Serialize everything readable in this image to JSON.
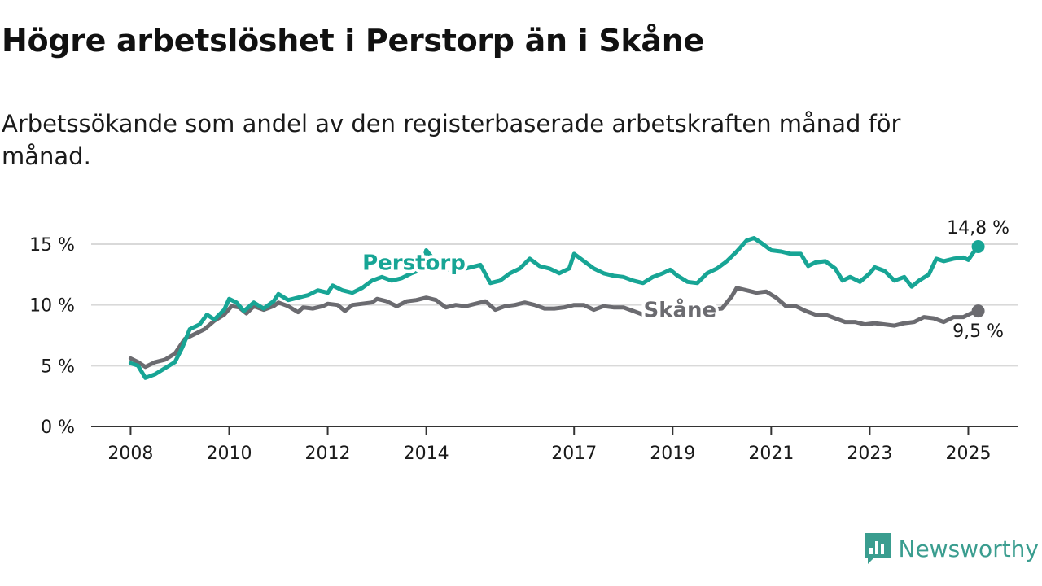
{
  "title": "Högre arbetslöshet i Perstorp än i Skåne",
  "subtitle": "Arbetssökande som andel av den registerbaserade arbetskraften månad för månad.",
  "brand": {
    "name": "Newsworthy",
    "icon": "newsworthy-logo-icon",
    "color": "#3a9d8f"
  },
  "chart_data": {
    "type": "line",
    "x_ticks": [
      {
        "label": "2008",
        "value": 2008.0
      },
      {
        "label": "2010",
        "value": 2010.0
      },
      {
        "label": "2012",
        "value": 2012.0
      },
      {
        "label": "2014",
        "value": 2014.0
      },
      {
        "label": "2017",
        "value": 2017.0
      },
      {
        "label": "2019",
        "value": 2019.0
      },
      {
        "label": "2021",
        "value": 2021.0
      },
      {
        "label": "2023",
        "value": 2023.0
      },
      {
        "label": "2025",
        "value": 2025.0
      }
    ],
    "xlim": [
      2007.2,
      2026.0
    ],
    "y_ticks": [
      {
        "label": "0 %",
        "value": 0
      },
      {
        "label": "5 %",
        "value": 5
      },
      {
        "label": "10 %",
        "value": 10
      },
      {
        "label": "15 %",
        "value": 15
      }
    ],
    "ylim": [
      0,
      15
    ],
    "grid": true,
    "series": [
      {
        "name": "Perstorp",
        "color": "#17a595",
        "end_label": "14,8 %",
        "points": [
          [
            2008.0,
            5.2
          ],
          [
            2008.15,
            5.0
          ],
          [
            2008.3,
            4.0
          ],
          [
            2008.5,
            4.3
          ],
          [
            2008.7,
            4.8
          ],
          [
            2008.9,
            5.3
          ],
          [
            2009.05,
            6.5
          ],
          [
            2009.2,
            8.0
          ],
          [
            2009.4,
            8.4
          ],
          [
            2009.55,
            9.2
          ],
          [
            2009.7,
            8.8
          ],
          [
            2009.9,
            9.6
          ],
          [
            2010.0,
            10.5
          ],
          [
            2010.15,
            10.2
          ],
          [
            2010.3,
            9.5
          ],
          [
            2010.5,
            10.2
          ],
          [
            2010.7,
            9.7
          ],
          [
            2010.9,
            10.3
          ],
          [
            2011.0,
            10.9
          ],
          [
            2011.2,
            10.4
          ],
          [
            2011.4,
            10.6
          ],
          [
            2011.6,
            10.8
          ],
          [
            2011.8,
            11.2
          ],
          [
            2012.0,
            11.0
          ],
          [
            2012.1,
            11.6
          ],
          [
            2012.3,
            11.2
          ],
          [
            2012.5,
            11.0
          ],
          [
            2012.7,
            11.4
          ],
          [
            2012.9,
            12.0
          ],
          [
            2013.1,
            12.3
          ],
          [
            2013.3,
            12.0
          ],
          [
            2013.5,
            12.2
          ],
          [
            2013.7,
            12.6
          ],
          [
            2013.9,
            12.9
          ],
          [
            2014.0,
            14.5
          ],
          [
            2014.2,
            13.5
          ],
          [
            2014.4,
            13.0
          ],
          [
            2014.6,
            12.7
          ],
          [
            2014.8,
            13.0
          ],
          [
            2015.1,
            13.3
          ],
          [
            2015.3,
            11.8
          ],
          [
            2015.5,
            12.0
          ],
          [
            2015.7,
            12.6
          ],
          [
            2015.9,
            13.0
          ],
          [
            2016.1,
            13.8
          ],
          [
            2016.3,
            13.2
          ],
          [
            2016.5,
            13.0
          ],
          [
            2016.7,
            12.6
          ],
          [
            2016.9,
            13.0
          ],
          [
            2017.0,
            14.2
          ],
          [
            2017.2,
            13.6
          ],
          [
            2017.4,
            13.0
          ],
          [
            2017.6,
            12.6
          ],
          [
            2017.8,
            12.4
          ],
          [
            2018.0,
            12.3
          ],
          [
            2018.2,
            12.0
          ],
          [
            2018.4,
            11.8
          ],
          [
            2018.6,
            12.3
          ],
          [
            2018.8,
            12.6
          ],
          [
            2018.95,
            12.9
          ],
          [
            2019.1,
            12.4
          ],
          [
            2019.3,
            11.9
          ],
          [
            2019.5,
            11.8
          ],
          [
            2019.7,
            12.6
          ],
          [
            2019.9,
            13.0
          ],
          [
            2020.1,
            13.6
          ],
          [
            2020.3,
            14.4
          ],
          [
            2020.5,
            15.3
          ],
          [
            2020.65,
            15.5
          ],
          [
            2020.8,
            15.1
          ],
          [
            2021.0,
            14.5
          ],
          [
            2021.2,
            14.4
          ],
          [
            2021.4,
            14.2
          ],
          [
            2021.6,
            14.2
          ],
          [
            2021.75,
            13.2
          ],
          [
            2021.9,
            13.5
          ],
          [
            2022.1,
            13.6
          ],
          [
            2022.3,
            13.0
          ],
          [
            2022.45,
            12.0
          ],
          [
            2022.6,
            12.3
          ],
          [
            2022.8,
            11.9
          ],
          [
            2023.0,
            12.6
          ],
          [
            2023.1,
            13.1
          ],
          [
            2023.3,
            12.8
          ],
          [
            2023.5,
            12.0
          ],
          [
            2023.7,
            12.3
          ],
          [
            2023.85,
            11.5
          ],
          [
            2024.0,
            12.0
          ],
          [
            2024.2,
            12.5
          ],
          [
            2024.35,
            13.8
          ],
          [
            2024.5,
            13.6
          ],
          [
            2024.7,
            13.8
          ],
          [
            2024.9,
            13.9
          ],
          [
            2025.0,
            13.7
          ],
          [
            2025.1,
            14.3
          ],
          [
            2025.2,
            14.8
          ]
        ]
      },
      {
        "name": "Skåne",
        "color": "#6b6b70",
        "end_label": "9,5 %",
        "points": [
          [
            2008.0,
            5.6
          ],
          [
            2008.15,
            5.3
          ],
          [
            2008.3,
            4.9
          ],
          [
            2008.5,
            5.3
          ],
          [
            2008.7,
            5.5
          ],
          [
            2008.9,
            6.0
          ],
          [
            2009.1,
            7.2
          ],
          [
            2009.3,
            7.6
          ],
          [
            2009.5,
            8.0
          ],
          [
            2009.7,
            8.7
          ],
          [
            2009.9,
            9.2
          ],
          [
            2010.05,
            9.9
          ],
          [
            2010.2,
            9.8
          ],
          [
            2010.35,
            9.3
          ],
          [
            2010.5,
            9.9
          ],
          [
            2010.7,
            9.6
          ],
          [
            2010.9,
            9.9
          ],
          [
            2011.0,
            10.2
          ],
          [
            2011.2,
            9.9
          ],
          [
            2011.4,
            9.4
          ],
          [
            2011.5,
            9.8
          ],
          [
            2011.7,
            9.7
          ],
          [
            2011.9,
            9.9
          ],
          [
            2012.0,
            10.1
          ],
          [
            2012.2,
            10.0
          ],
          [
            2012.35,
            9.5
          ],
          [
            2012.5,
            10.0
          ],
          [
            2012.7,
            10.1
          ],
          [
            2012.9,
            10.2
          ],
          [
            2013.0,
            10.5
          ],
          [
            2013.2,
            10.3
          ],
          [
            2013.4,
            9.9
          ],
          [
            2013.6,
            10.3
          ],
          [
            2013.8,
            10.4
          ],
          [
            2014.0,
            10.6
          ],
          [
            2014.2,
            10.4
          ],
          [
            2014.4,
            9.8
          ],
          [
            2014.6,
            10.0
          ],
          [
            2014.8,
            9.9
          ],
          [
            2015.0,
            10.1
          ],
          [
            2015.2,
            10.3
          ],
          [
            2015.4,
            9.6
          ],
          [
            2015.6,
            9.9
          ],
          [
            2015.8,
            10.0
          ],
          [
            2016.0,
            10.2
          ],
          [
            2016.2,
            10.0
          ],
          [
            2016.4,
            9.7
          ],
          [
            2016.6,
            9.7
          ],
          [
            2016.8,
            9.8
          ],
          [
            2017.0,
            10.0
          ],
          [
            2017.2,
            10.0
          ],
          [
            2017.4,
            9.6
          ],
          [
            2017.6,
            9.9
          ],
          [
            2017.8,
            9.8
          ],
          [
            2018.0,
            9.8
          ],
          [
            2018.2,
            9.5
          ],
          [
            2018.4,
            9.2
          ],
          [
            2018.6,
            9.3
          ],
          [
            2020.0,
            9.7
          ],
          [
            2020.2,
            10.7
          ],
          [
            2020.3,
            11.4
          ],
          [
            2020.5,
            11.2
          ],
          [
            2020.7,
            11.0
          ],
          [
            2020.9,
            11.1
          ],
          [
            2021.1,
            10.6
          ],
          [
            2021.3,
            9.9
          ],
          [
            2021.5,
            9.9
          ],
          [
            2021.7,
            9.5
          ],
          [
            2021.9,
            9.2
          ],
          [
            2022.1,
            9.2
          ],
          [
            2022.3,
            8.9
          ],
          [
            2022.5,
            8.6
          ],
          [
            2022.7,
            8.6
          ],
          [
            2022.9,
            8.4
          ],
          [
            2023.1,
            8.5
          ],
          [
            2023.3,
            8.4
          ],
          [
            2023.5,
            8.3
          ],
          [
            2023.7,
            8.5
          ],
          [
            2023.9,
            8.6
          ],
          [
            2024.1,
            9.0
          ],
          [
            2024.3,
            8.9
          ],
          [
            2024.5,
            8.6
          ],
          [
            2024.7,
            9.0
          ],
          [
            2024.9,
            9.0
          ],
          [
            2025.05,
            9.3
          ],
          [
            2025.2,
            9.5
          ]
        ]
      }
    ]
  }
}
